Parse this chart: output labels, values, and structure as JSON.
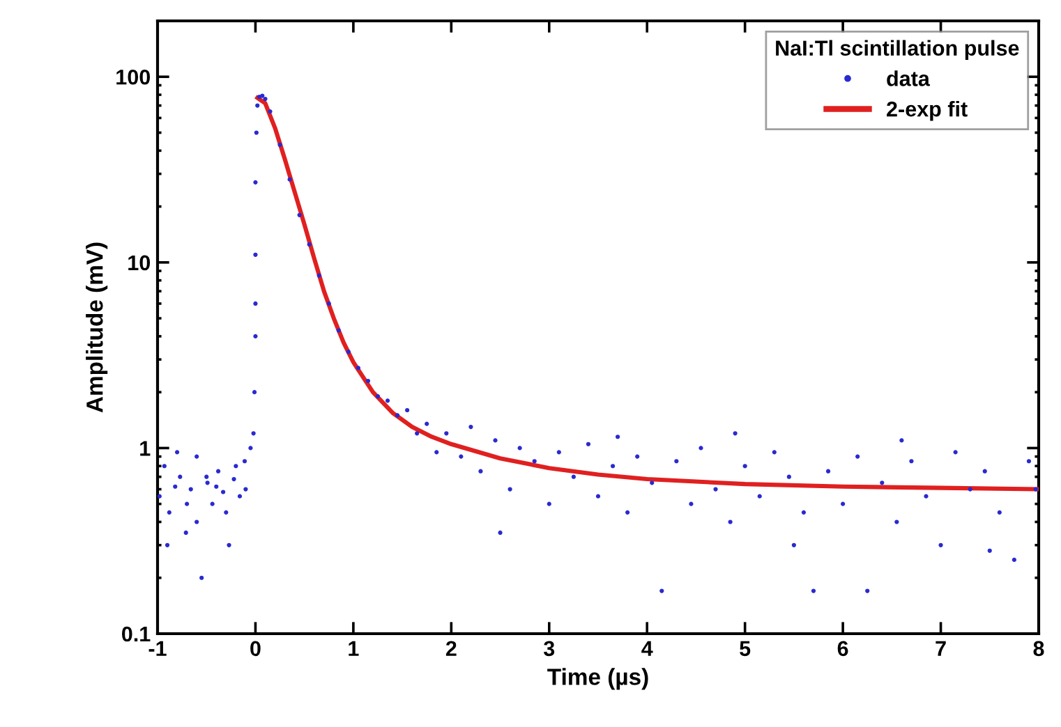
{
  "chart_data": {
    "type": "scatter",
    "xlabel": "Time (µs)",
    "ylabel": "Amplitude (mV)",
    "legend_title": "NaI:Tl scintillation pulse",
    "log": "y",
    "xlim": [
      -1,
      8
    ],
    "xticks": [
      -1,
      0,
      1,
      2,
      3,
      4,
      5,
      6,
      7,
      8
    ],
    "ylim": [
      0.1,
      200
    ],
    "yticks": [
      0.1,
      1,
      10,
      100
    ],
    "grid": false,
    "legend": "top right",
    "series": [
      {
        "name": "data",
        "marker": "circle",
        "color": "#2a2ad0",
        "x": [
          -0.98,
          -0.93,
          -0.88,
          -0.82,
          -0.77,
          -0.71,
          -0.66,
          -0.6,
          -0.55,
          -0.49,
          -0.44,
          -0.38,
          -0.33,
          -0.27,
          -0.22,
          -0.16,
          -0.11,
          -0.05,
          -0.9,
          -0.8,
          -0.7,
          -0.6,
          -0.5,
          -0.4,
          -0.3,
          -0.2,
          -0.1,
          -0.02,
          -0.01,
          0,
          0,
          0,
          0,
          0.01,
          0.02,
          0.04,
          0.07,
          0.1,
          0.15,
          0.25,
          0.35,
          0.45,
          0.55,
          0.65,
          0.75,
          0.85,
          0.95,
          1.05,
          1.15,
          1.25,
          1.35,
          1.45,
          1.55,
          1.65,
          1.75,
          1.85,
          1.95,
          2.1,
          2.2,
          2.3,
          2.45,
          2.6,
          2.7,
          2.85,
          3.0,
          3.1,
          3.25,
          3.4,
          3.5,
          3.65,
          3.8,
          3.9,
          4.05,
          4.15,
          4.3,
          4.45,
          4.55,
          4.7,
          4.85,
          5.0,
          5.15,
          5.3,
          5.45,
          5.6,
          5.7,
          5.85,
          6.0,
          6.15,
          6.25,
          6.4,
          6.55,
          6.7,
          6.85,
          7.0,
          7.15,
          7.3,
          7.45,
          7.6,
          7.75,
          7.9,
          7.97,
          2.5,
          3.7,
          4.9,
          6.6,
          5.5,
          7.5
        ],
        "values": [
          0.55,
          0.8,
          0.45,
          0.62,
          0.7,
          0.35,
          0.6,
          0.9,
          0.2,
          0.65,
          0.5,
          0.75,
          0.58,
          0.3,
          0.68,
          0.55,
          0.85,
          1.0,
          0.3,
          0.95,
          0.5,
          0.4,
          0.7,
          0.62,
          0.45,
          0.8,
          0.6,
          1.2,
          2,
          4,
          6,
          11,
          27,
          50,
          70,
          78,
          79,
          76,
          65,
          43,
          28,
          18,
          12.5,
          8.5,
          6,
          4.3,
          3.3,
          2.7,
          2.3,
          1.9,
          1.8,
          1.5,
          1.6,
          1.2,
          1.35,
          0.95,
          1.2,
          0.9,
          1.3,
          0.75,
          1.1,
          0.6,
          1.0,
          0.85,
          0.5,
          0.95,
          0.7,
          1.05,
          0.55,
          0.8,
          0.45,
          0.9,
          0.65,
          0.17,
          0.85,
          0.5,
          1.0,
          0.6,
          0.4,
          0.8,
          0.55,
          0.95,
          0.7,
          0.45,
          0.17,
          0.75,
          0.5,
          0.9,
          0.17,
          0.65,
          0.4,
          0.85,
          0.55,
          0.3,
          0.95,
          0.6,
          0.75,
          0.45,
          0.25,
          0.85,
          0.6,
          0.35,
          1.15,
          1.2,
          1.1,
          0.3,
          0.28
        ]
      },
      {
        "name": "2-exp fit",
        "type": "line",
        "marker": "none",
        "line_style": "solid",
        "color": "#e02020",
        "x": [
          0.02,
          0.1,
          0.2,
          0.3,
          0.4,
          0.5,
          0.6,
          0.7,
          0.8,
          0.9,
          1.0,
          1.2,
          1.4,
          1.6,
          1.8,
          2.0,
          2.5,
          3,
          3.5,
          4,
          5,
          6,
          7,
          8
        ],
        "values": [
          77,
          72,
          53,
          36,
          24,
          16,
          10.5,
          7,
          5,
          3.7,
          2.9,
          2.0,
          1.55,
          1.3,
          1.15,
          1.05,
          0.88,
          0.78,
          0.72,
          0.68,
          0.64,
          0.62,
          0.61,
          0.6
        ]
      }
    ]
  }
}
